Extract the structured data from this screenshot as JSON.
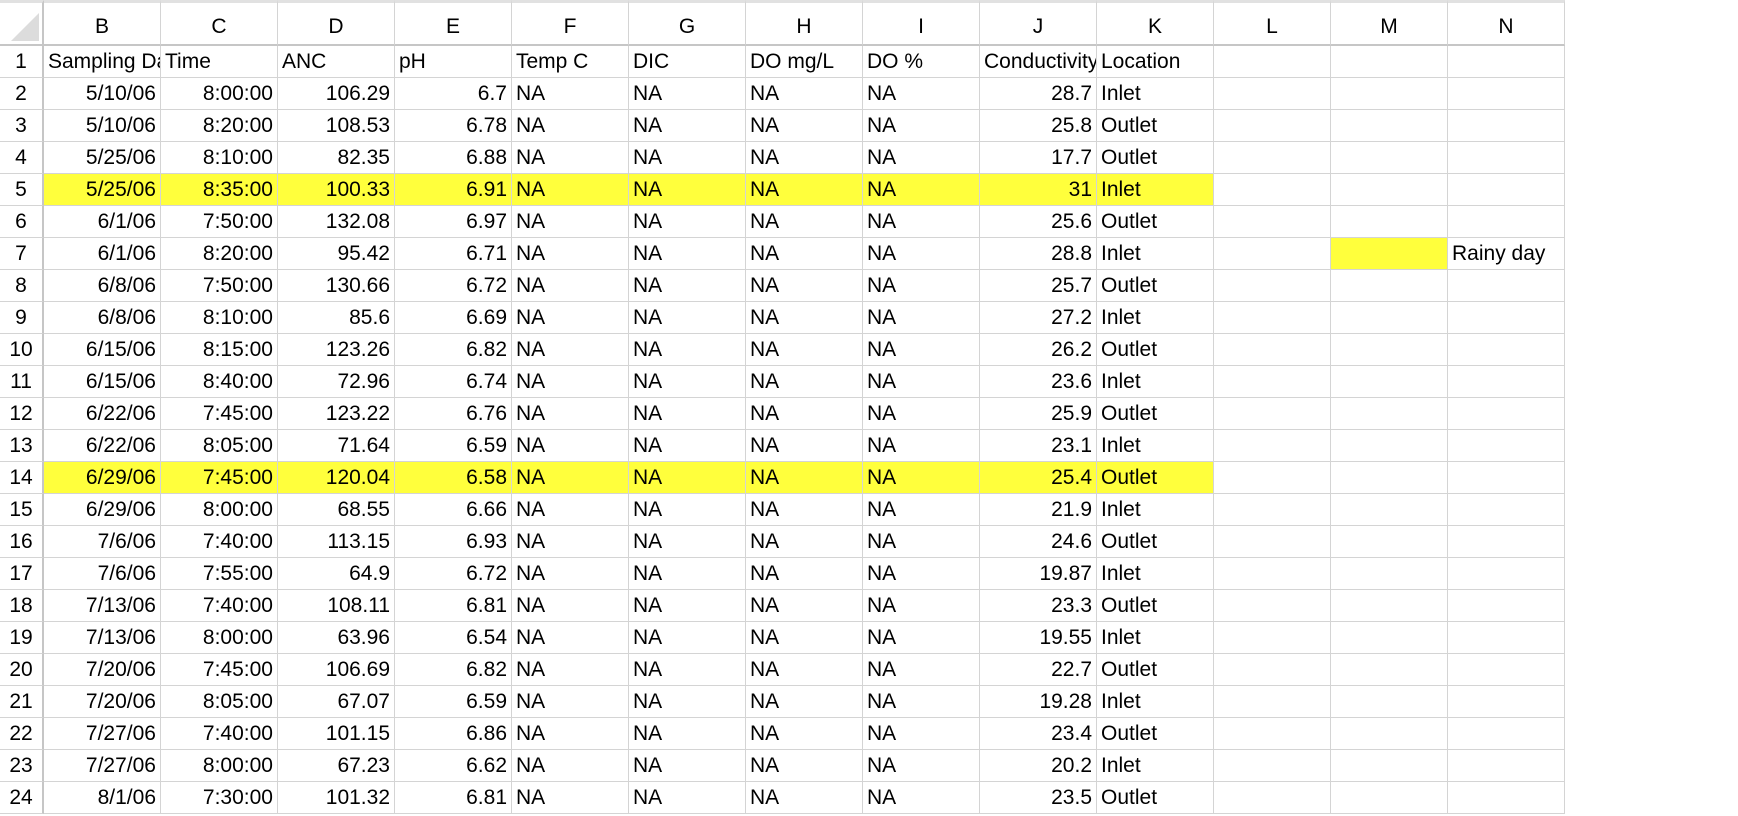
{
  "spreadsheet": {
    "columns": [
      "B",
      "C",
      "D",
      "E",
      "F",
      "G",
      "H",
      "I",
      "J",
      "K",
      "L",
      "M",
      "N"
    ],
    "highlight_color": "#ffff3c",
    "rows": [
      {
        "num": "1",
        "cells": [
          "Sampling Da",
          "Time",
          "ANC",
          "pH",
          "Temp C",
          "DIC",
          "DO mg/L",
          "DO %",
          "Conductivity",
          "Location",
          "",
          "",
          ""
        ]
      },
      {
        "num": "2",
        "cells": [
          "5/10/06",
          "8:00:00",
          "106.29",
          "6.7",
          "NA",
          "NA",
          "NA",
          "NA",
          "28.7",
          "Inlet",
          "",
          "",
          ""
        ]
      },
      {
        "num": "3",
        "cells": [
          "5/10/06",
          "8:20:00",
          "108.53",
          "6.78",
          "NA",
          "NA",
          "NA",
          "NA",
          "25.8",
          "Outlet",
          "",
          "",
          ""
        ]
      },
      {
        "num": "4",
        "cells": [
          "5/25/06",
          "8:10:00",
          "82.35",
          "6.88",
          "NA",
          "NA",
          "NA",
          "NA",
          "17.7",
          "Outlet",
          "",
          "",
          ""
        ]
      },
      {
        "num": "5",
        "cells": [
          "5/25/06",
          "8:35:00",
          "100.33",
          "6.91",
          "NA",
          "NA",
          "NA",
          "NA",
          "31",
          "Inlet",
          "",
          "",
          ""
        ]
      },
      {
        "num": "6",
        "cells": [
          "6/1/06",
          "7:50:00",
          "132.08",
          "6.97",
          "NA",
          "NA",
          "NA",
          "NA",
          "25.6",
          "Outlet",
          "",
          "",
          ""
        ]
      },
      {
        "num": "7",
        "cells": [
          "6/1/06",
          "8:20:00",
          "95.42",
          "6.71",
          "NA",
          "NA",
          "NA",
          "NA",
          "28.8",
          "Inlet",
          "",
          "",
          "Rainy day"
        ]
      },
      {
        "num": "8",
        "cells": [
          "6/8/06",
          "7:50:00",
          "130.66",
          "6.72",
          "NA",
          "NA",
          "NA",
          "NA",
          "25.7",
          "Outlet",
          "",
          "",
          ""
        ]
      },
      {
        "num": "9",
        "cells": [
          "6/8/06",
          "8:10:00",
          "85.6",
          "6.69",
          "NA",
          "NA",
          "NA",
          "NA",
          "27.2",
          "Inlet",
          "",
          "",
          ""
        ]
      },
      {
        "num": "10",
        "cells": [
          "6/15/06",
          "8:15:00",
          "123.26",
          "6.82",
          "NA",
          "NA",
          "NA",
          "NA",
          "26.2",
          "Outlet",
          "",
          "",
          ""
        ]
      },
      {
        "num": "11",
        "cells": [
          "6/15/06",
          "8:40:00",
          "72.96",
          "6.74",
          "NA",
          "NA",
          "NA",
          "NA",
          "23.6",
          "Inlet",
          "",
          "",
          ""
        ]
      },
      {
        "num": "12",
        "cells": [
          "6/22/06",
          "7:45:00",
          "123.22",
          "6.76",
          "NA",
          "NA",
          "NA",
          "NA",
          "25.9",
          "Outlet",
          "",
          "",
          ""
        ]
      },
      {
        "num": "13",
        "cells": [
          "6/22/06",
          "8:05:00",
          "71.64",
          "6.59",
          "NA",
          "NA",
          "NA",
          "NA",
          "23.1",
          "Inlet",
          "",
          "",
          ""
        ]
      },
      {
        "num": "14",
        "cells": [
          "6/29/06",
          "7:45:00",
          "120.04",
          "6.58",
          "NA",
          "NA",
          "NA",
          "NA",
          "25.4",
          "Outlet",
          "",
          "",
          ""
        ]
      },
      {
        "num": "15",
        "cells": [
          "6/29/06",
          "8:00:00",
          "68.55",
          "6.66",
          "NA",
          "NA",
          "NA",
          "NA",
          "21.9",
          "Inlet",
          "",
          "",
          ""
        ]
      },
      {
        "num": "16",
        "cells": [
          "7/6/06",
          "7:40:00",
          "113.15",
          "6.93",
          "NA",
          "NA",
          "NA",
          "NA",
          "24.6",
          "Outlet",
          "",
          "",
          ""
        ]
      },
      {
        "num": "17",
        "cells": [
          "7/6/06",
          "7:55:00",
          "64.9",
          "6.72",
          "NA",
          "NA",
          "NA",
          "NA",
          "19.87",
          "Inlet",
          "",
          "",
          ""
        ]
      },
      {
        "num": "18",
        "cells": [
          "7/13/06",
          "7:40:00",
          "108.11",
          "6.81",
          "NA",
          "NA",
          "NA",
          "NA",
          "23.3",
          "Outlet",
          "",
          "",
          ""
        ]
      },
      {
        "num": "19",
        "cells": [
          "7/13/06",
          "8:00:00",
          "63.96",
          "6.54",
          "NA",
          "NA",
          "NA",
          "NA",
          "19.55",
          "Inlet",
          "",
          "",
          ""
        ]
      },
      {
        "num": "20",
        "cells": [
          "7/20/06",
          "7:45:00",
          "106.69",
          "6.82",
          "NA",
          "NA",
          "NA",
          "NA",
          "22.7",
          "Outlet",
          "",
          "",
          ""
        ]
      },
      {
        "num": "21",
        "cells": [
          "7/20/06",
          "8:05:00",
          "67.07",
          "6.59",
          "NA",
          "NA",
          "NA",
          "NA",
          "19.28",
          "Inlet",
          "",
          "",
          ""
        ]
      },
      {
        "num": "22",
        "cells": [
          "7/27/06",
          "7:40:00",
          "101.15",
          "6.86",
          "NA",
          "NA",
          "NA",
          "NA",
          "23.4",
          "Outlet",
          "",
          "",
          ""
        ]
      },
      {
        "num": "23",
        "cells": [
          "7/27/06",
          "8:00:00",
          "67.23",
          "6.62",
          "NA",
          "NA",
          "NA",
          "NA",
          "20.2",
          "Inlet",
          "",
          "",
          ""
        ]
      },
      {
        "num": "24",
        "cells": [
          "8/1/06",
          "7:30:00",
          "101.32",
          "6.81",
          "NA",
          "NA",
          "NA",
          "NA",
          "23.5",
          "Outlet",
          "",
          "",
          ""
        ]
      }
    ]
  }
}
